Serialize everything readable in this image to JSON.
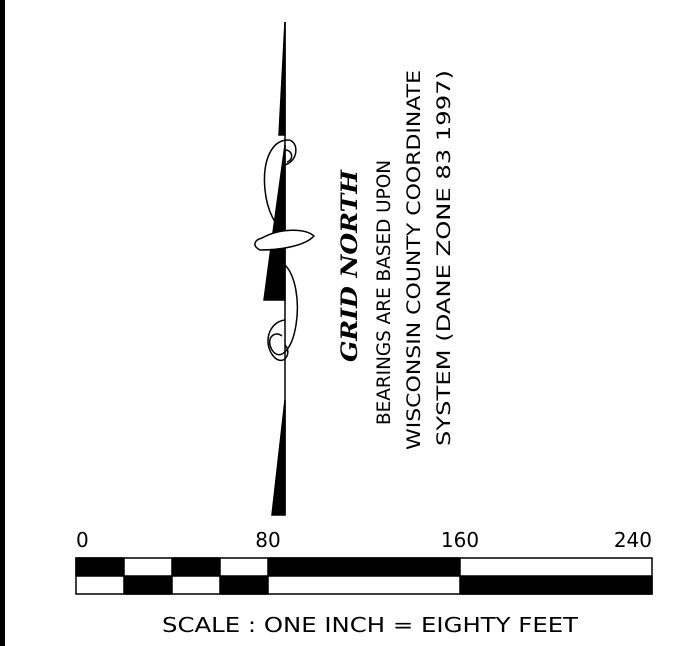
{
  "north_arrow": {
    "label": "GRID NORTH",
    "note_lines": [
      "BEARINGS ARE BASED UPON",
      "WISCONSIN COUNTY COORDINATE",
      "SYSTEM (DANE ZONE 83 1997)"
    ]
  },
  "scale": {
    "ticks": [
      "0",
      "80",
      "160",
      "240"
    ],
    "caption": "SCALE : ONE INCH = EIGHTY FEET"
  }
}
